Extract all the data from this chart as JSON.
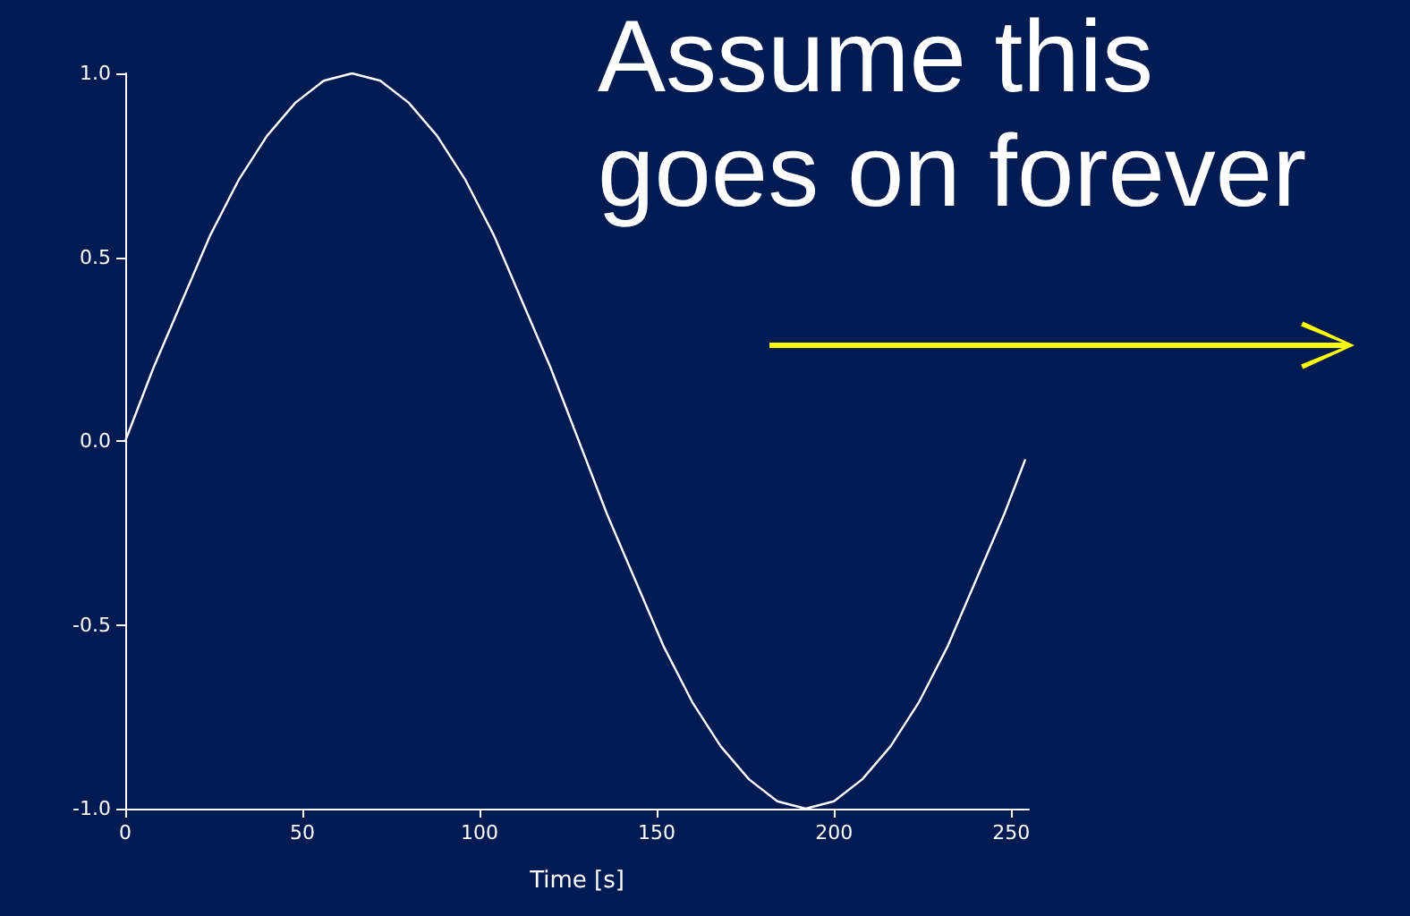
{
  "chart_data": {
    "type": "line",
    "xlabel": "Time [s]",
    "annotations": [
      "Assume this goes on forever"
    ],
    "x": [
      0,
      8,
      16,
      24,
      32,
      40,
      48,
      56,
      64,
      72,
      80,
      88,
      96,
      104,
      112,
      120,
      128,
      136,
      144,
      152,
      160,
      168,
      176,
      184,
      192,
      200,
      208,
      216,
      224,
      232,
      240,
      248,
      254
    ],
    "series": [
      {
        "color": "#ffffff",
        "values": [
          0,
          0.2,
          0.38,
          0.56,
          0.71,
          0.83,
          0.92,
          0.98,
          1.0,
          0.98,
          0.92,
          0.83,
          0.71,
          0.56,
          0.38,
          0.2,
          0,
          -0.2,
          -0.38,
          -0.56,
          -0.71,
          -0.83,
          -0.92,
          -0.98,
          -1.0,
          -0.98,
          -0.92,
          -0.83,
          -0.71,
          -0.56,
          -0.38,
          -0.2,
          -0.05
        ]
      }
    ],
    "xlim": [
      0,
      255
    ],
    "xticks": [
      0,
      50,
      100,
      150,
      200,
      250
    ],
    "ylim": [
      -1,
      1
    ],
    "yticks": [
      {
        "value": -1,
        "label": "-1.0"
      },
      {
        "value": -0.5,
        "label": "-0.5"
      },
      {
        "value": 0,
        "label": "0.0"
      },
      {
        "value": 0.5,
        "label": "0.5"
      },
      {
        "value": 1,
        "label": "1.0"
      }
    ],
    "grid": false,
    "marker": "none",
    "line_style": "solid"
  }
}
